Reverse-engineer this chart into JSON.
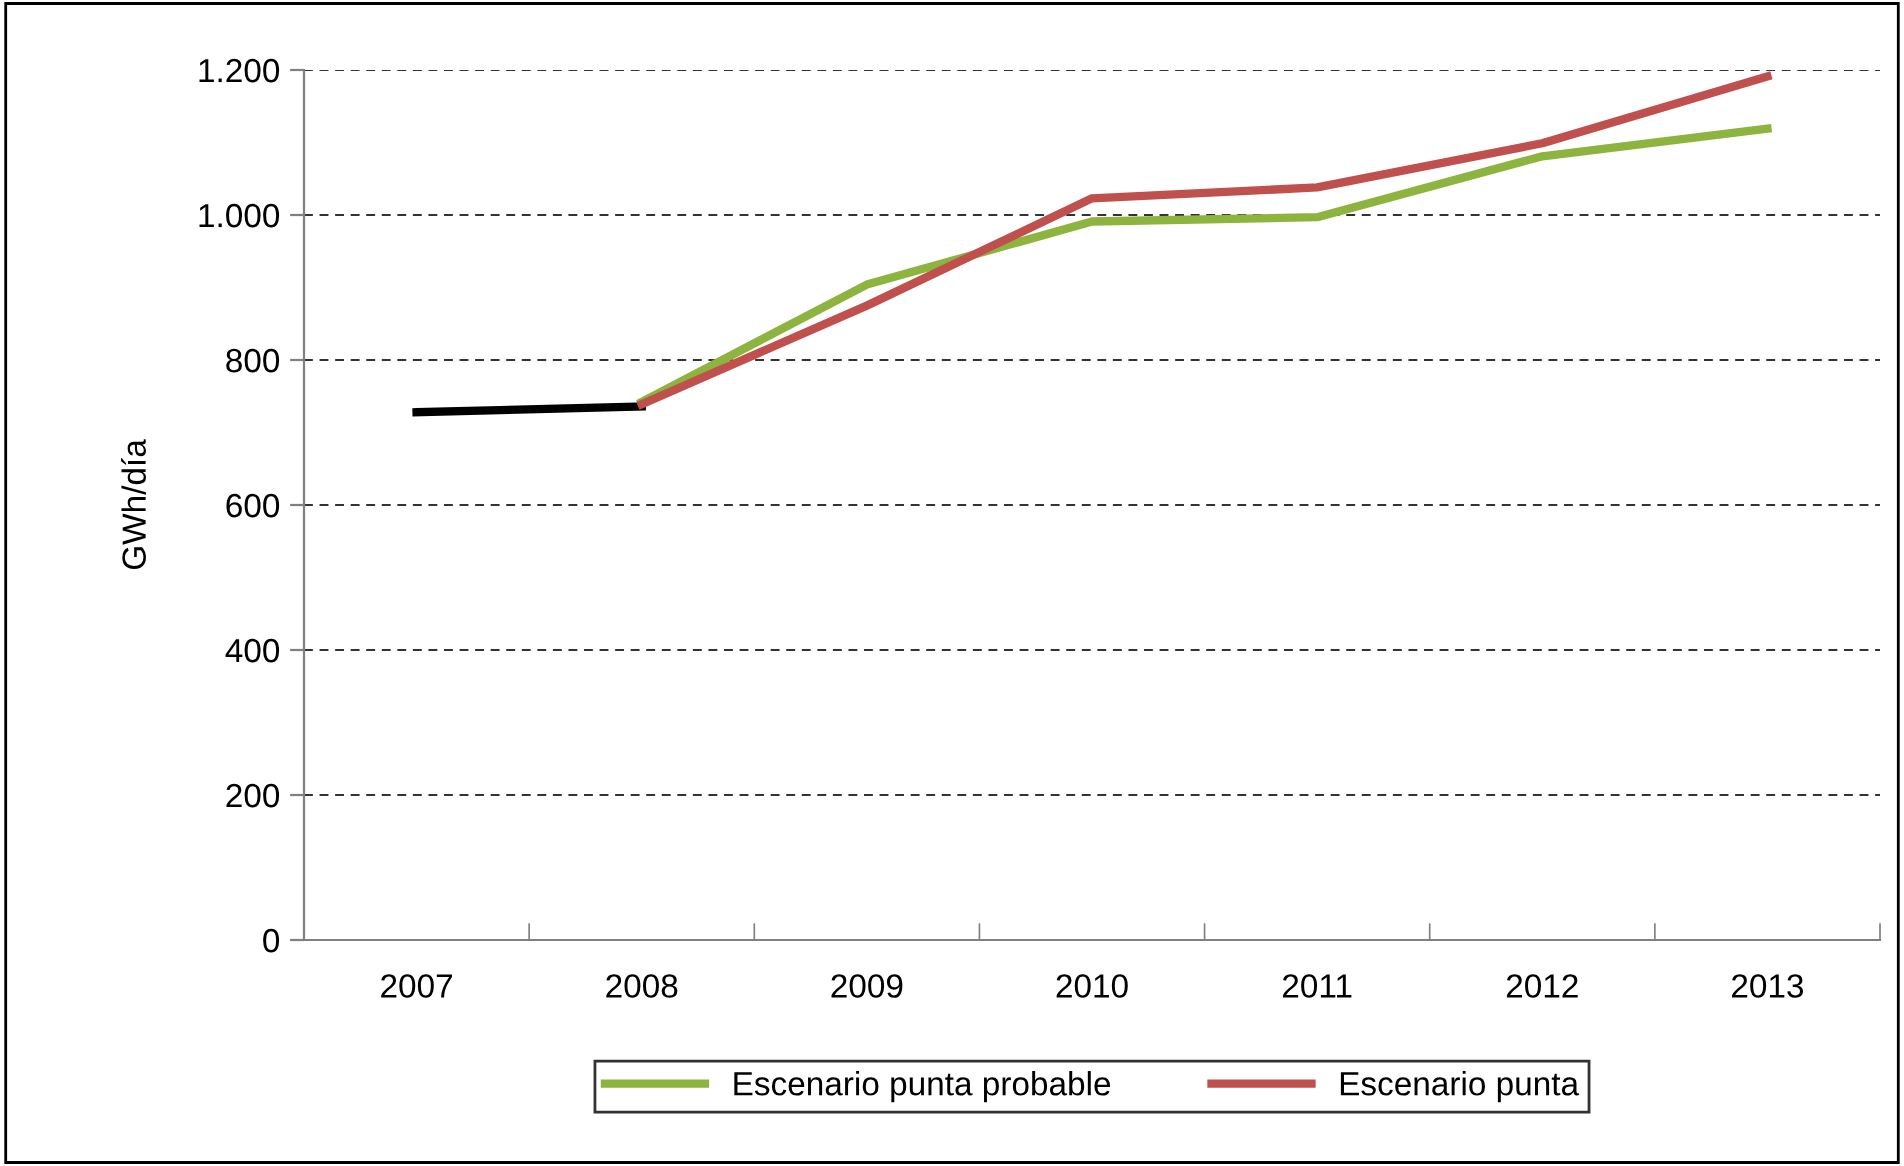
{
  "chart_data": {
    "type": "line",
    "ylabel": "GWh/día",
    "categories": [
      "2007",
      "2008",
      "2009",
      "2010",
      "2011",
      "2012",
      "2013"
    ],
    "series": [
      {
        "color": "#000000",
        "values": [
          728,
          736,
          null,
          null,
          null,
          null,
          null
        ]
      },
      {
        "name": "Escenario punta probable",
        "color": "#8db43e",
        "values": [
          null,
          742,
          904,
          991,
          997,
          1081,
          1119
        ]
      },
      {
        "name": "Escenario punta",
        "color": "#c0504d",
        "values": [
          null,
          739,
          875,
          1023,
          1038,
          1099,
          1191
        ]
      }
    ],
    "ylim": [
      0,
      1200
    ],
    "yticks": [
      0,
      200,
      400,
      600,
      800,
      {
        "value": 1000,
        "label": "1.000"
      },
      {
        "value": 1200,
        "label": "1.200"
      }
    ],
    "grid": "y",
    "line_style": "solid",
    "marker": "none",
    "legend": "bottom"
  }
}
